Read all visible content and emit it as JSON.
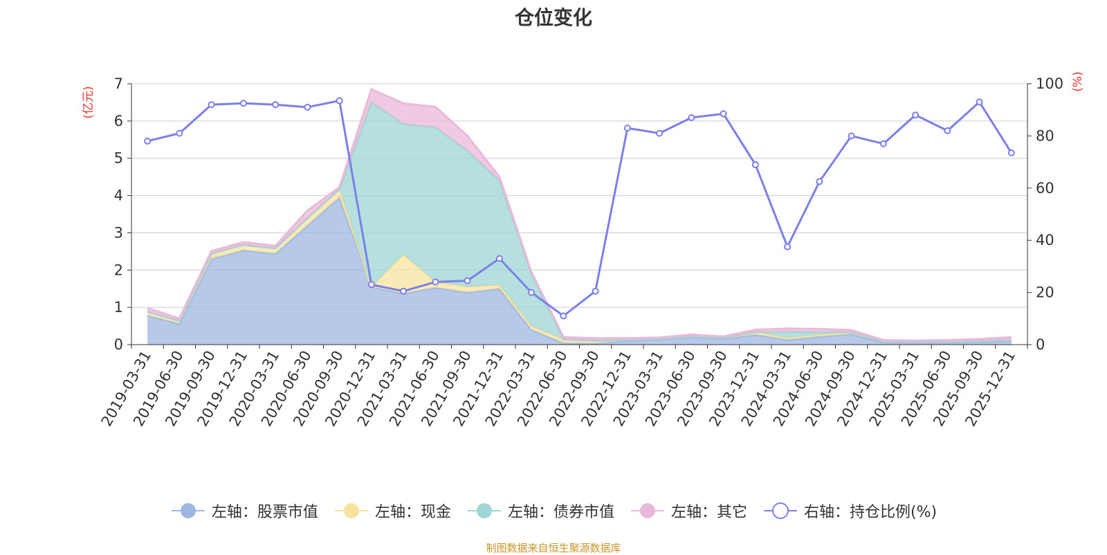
{
  "chart_data": {
    "type": "area",
    "title": "仓位变化",
    "ylabel_left": "(亿元)",
    "ylabel_right": "(%)",
    "ylim_left": [
      0,
      7
    ],
    "ylim_right": [
      0,
      100
    ],
    "yticks_left": [
      0,
      1,
      2,
      3,
      4,
      5,
      6,
      7
    ],
    "yticks_right": [
      0,
      20,
      40,
      60,
      80,
      100
    ],
    "grid": true,
    "legend_position": "bottom",
    "categories": [
      "2019-03-31",
      "2019-06-30",
      "2019-09-30",
      "2019-12-31",
      "2020-03-31",
      "2020-06-30",
      "2020-09-30",
      "2020-12-31",
      "2021-03-31",
      "2021-06-30",
      "2021-09-30",
      "2021-12-31",
      "2022-03-31",
      "2022-06-30",
      "2022-09-30",
      "2022-12-31",
      "2023-03-31",
      "2023-06-30",
      "2023-09-30",
      "2023-12-31",
      "2024-03-31",
      "2024-06-30",
      "2024-09-30",
      "2024-12-31",
      "2025-03-31",
      "2025-06-30",
      "2025-09-30",
      "2025-12-31"
    ],
    "series": [
      {
        "name": "左轴：股票市值",
        "axis": "left",
        "kind": "stacked-area",
        "color": "#9db7e0",
        "values": [
          0.78,
          0.56,
          2.3,
          2.53,
          2.44,
          3.2,
          3.95,
          1.55,
          1.37,
          1.53,
          1.4,
          1.5,
          0.4,
          0.04,
          0.03,
          0.11,
          0.14,
          0.2,
          0.16,
          0.27,
          0.13,
          0.22,
          0.28,
          0.06,
          0.05,
          0.05,
          0.07,
          0.1
        ]
      },
      {
        "name": "左轴：现金",
        "axis": "left",
        "kind": "stacked-area",
        "color": "#f7e3a0",
        "values": [
          0.1,
          0.08,
          0.14,
          0.15,
          0.14,
          0.2,
          0.22,
          0.0,
          1.05,
          0.15,
          0.15,
          0.1,
          0.1,
          0.1,
          0.08,
          0.02,
          0.02,
          0.02,
          0.03,
          0.07,
          0.05,
          0.05,
          0.05,
          0.03,
          0.03,
          0.03,
          0.03,
          0.03
        ]
      },
      {
        "name": "左轴：债券市值",
        "axis": "left",
        "kind": "stacked-area",
        "color": "#9ed6d4",
        "values": [
          0,
          0,
          0,
          0,
          0,
          0,
          0,
          4.95,
          3.5,
          4.15,
          3.65,
          2.8,
          1.4,
          0,
          0,
          0,
          0,
          0,
          0,
          0,
          0.16,
          0.07,
          0,
          0,
          0,
          0,
          0,
          0
        ]
      },
      {
        "name": "左轴：其它",
        "axis": "left",
        "kind": "stacked-area",
        "color": "#eab8d8",
        "values": [
          0.1,
          0.06,
          0.07,
          0.07,
          0.07,
          0.2,
          0.05,
          0.35,
          0.55,
          0.55,
          0.4,
          0.1,
          0.05,
          0.06,
          0.06,
          0.04,
          0.03,
          0.05,
          0.03,
          0.06,
          0.09,
          0.08,
          0.06,
          0.03,
          0.03,
          0.04,
          0.05,
          0.07
        ]
      },
      {
        "name": "右轴：持仓比例(%)",
        "axis": "right",
        "kind": "line",
        "color": "#7b7fe8",
        "values": [
          78,
          81,
          92,
          92.5,
          92,
          91,
          93.5,
          23,
          20.5,
          24,
          24.5,
          33,
          20,
          11,
          20.5,
          83,
          81,
          87,
          88.5,
          69,
          37.5,
          62.5,
          80,
          77,
          88,
          82,
          93,
          73.5
        ]
      }
    ]
  },
  "source_text": "制图数据来自恒生聚源数据库"
}
